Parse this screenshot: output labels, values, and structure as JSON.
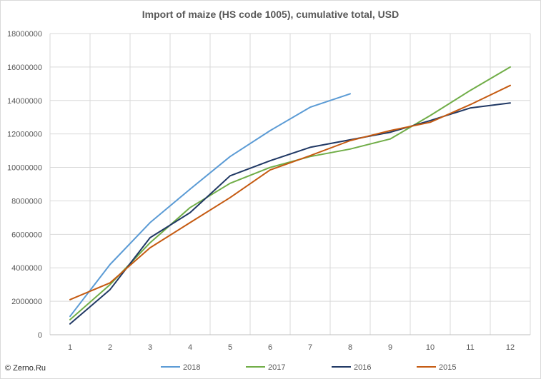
{
  "chart_data": {
    "type": "line",
    "title": "Import of maize (HS code 1005), cumulative total, USD",
    "x": [
      1,
      2,
      3,
      4,
      5,
      6,
      7,
      8,
      9,
      10,
      11,
      12
    ],
    "x_tick_labels": [
      "1",
      "2",
      "3",
      "4",
      "5",
      "6",
      "7",
      "8",
      "9",
      "10",
      "11",
      "12"
    ],
    "ylim": [
      0,
      18000000
    ],
    "y_tick_labels": [
      "0",
      "2000000",
      "4000000",
      "6000000",
      "8000000",
      "10000000",
      "12000000",
      "14000000",
      "16000000",
      "18000000"
    ],
    "grid": true,
    "legend_position": "bottom",
    "series": [
      {
        "name": "2018",
        "color": "#5b9bd5",
        "values": [
          1100000,
          4200000,
          6700000,
          8700000,
          10650000,
          12200000,
          13600000,
          14400000,
          null,
          null,
          null,
          null
        ]
      },
      {
        "name": "2017",
        "color": "#70ad47",
        "values": [
          900000,
          3000000,
          5500000,
          7600000,
          9050000,
          10000000,
          10650000,
          11100000,
          11700000,
          13100000,
          14600000,
          16000000
        ]
      },
      {
        "name": "2016",
        "color": "#203864",
        "values": [
          650000,
          2700000,
          5800000,
          7300000,
          9500000,
          10400000,
          11200000,
          11650000,
          12100000,
          12800000,
          13550000,
          13850000
        ]
      },
      {
        "name": "2015",
        "color": "#c55a11",
        "values": [
          2100000,
          3100000,
          5200000,
          6700000,
          8200000,
          9850000,
          10700000,
          11600000,
          12200000,
          12700000,
          13750000,
          14900000
        ]
      }
    ]
  },
  "footer": {
    "credit": "© Zerno.Ru"
  }
}
